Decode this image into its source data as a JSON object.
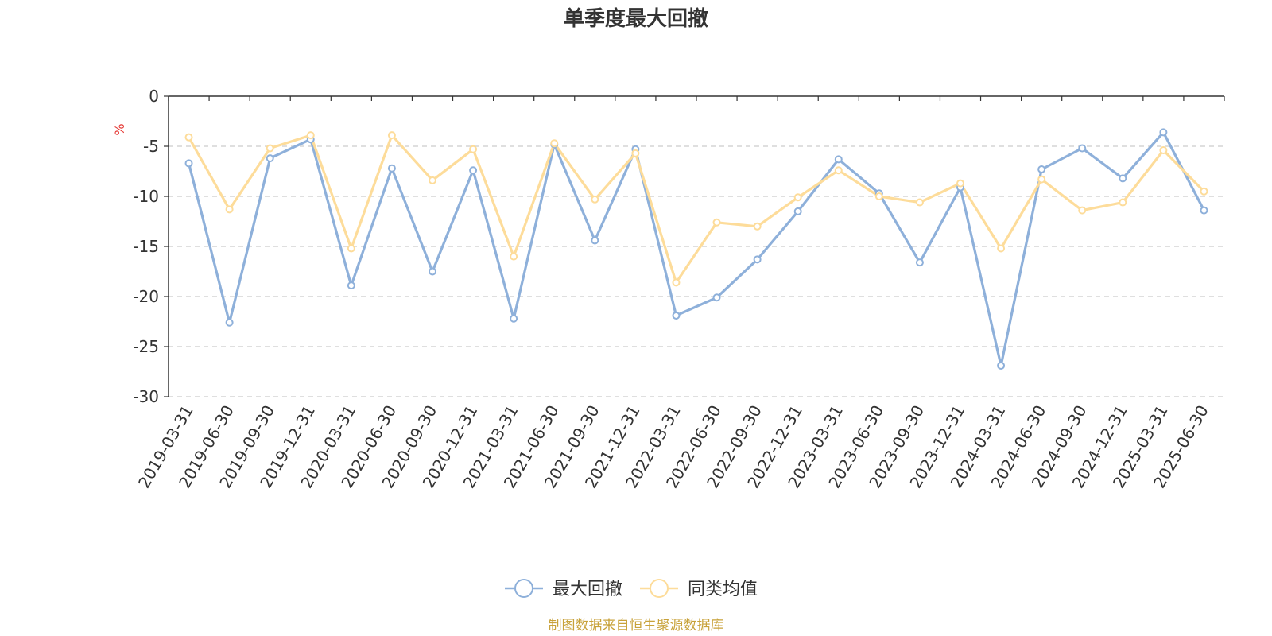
{
  "chart_data": {
    "type": "line",
    "title": "单季度最大回撤",
    "ylabel": "%",
    "ylim": [
      -30,
      0
    ],
    "yticks": [
      0,
      -5,
      -10,
      -15,
      -20,
      -25,
      -30
    ],
    "grid": true,
    "legend_position": "bottom-center",
    "categories": [
      "2019-03-31",
      "2019-06-30",
      "2019-09-30",
      "2019-12-31",
      "2020-03-31",
      "2020-06-30",
      "2020-09-30",
      "2020-12-31",
      "2021-03-31",
      "2021-06-30",
      "2021-09-30",
      "2021-12-31",
      "2022-03-31",
      "2022-06-30",
      "2022-09-30",
      "2022-12-31",
      "2023-03-31",
      "2023-06-30",
      "2023-09-30",
      "2023-12-31",
      "2024-03-31",
      "2024-06-30",
      "2024-09-30",
      "2024-12-31",
      "2025-03-31",
      "2025-06-30"
    ],
    "series": [
      {
        "name": "最大回撤",
        "color": "#8eb0da",
        "values": [
          -6.7,
          -22.6,
          -6.2,
          -4.3,
          -18.9,
          -7.2,
          -17.5,
          -7.4,
          -22.2,
          -4.8,
          -14.4,
          -5.3,
          -21.9,
          -20.1,
          -16.3,
          -11.5,
          -6.3,
          -9.7,
          -16.6,
          -9.1,
          -26.9,
          -7.3,
          -5.2,
          -8.2,
          -3.6,
          -11.4
        ]
      },
      {
        "name": "同类均值",
        "color": "#fddc9a",
        "values": [
          -4.1,
          -11.3,
          -5.2,
          -3.9,
          -15.2,
          -3.9,
          -8.4,
          -5.3,
          -16.0,
          -4.7,
          -10.3,
          -5.7,
          -18.6,
          -12.6,
          -13.0,
          -10.1,
          -7.4,
          -10.0,
          -10.6,
          -8.7,
          -15.2,
          -8.3,
          -11.4,
          -10.6,
          -5.4,
          -9.5
        ]
      }
    ]
  },
  "source_note": "制图数据来自恒生聚源数据库",
  "colors": {
    "title": "#333333",
    "axis": "#333333",
    "grid": "#cccccc",
    "unit": "#e53935",
    "source": "#c8a23a"
  }
}
